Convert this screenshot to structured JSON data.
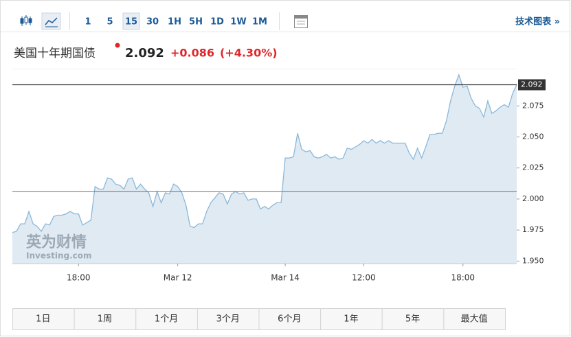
{
  "toolbar": {
    "intervals": [
      "1",
      "5",
      "15",
      "30",
      "1H",
      "5H",
      "1D",
      "1W",
      "1M"
    ],
    "selected": "15",
    "link": "技术图表 »"
  },
  "header": {
    "title": "美国十年期国债",
    "price": "2.092",
    "change": "+0.086",
    "change_percent": "(+4.30%)"
  },
  "watermark": {
    "brand": "英为财情",
    "site": "Investing.com"
  },
  "chart_data": {
    "type": "area",
    "color": "#8ab8d8",
    "fill": "#dfeaf3",
    "values": [
      1.973,
      1.974,
      1.98,
      1.98,
      1.99,
      1.98,
      1.978,
      1.974,
      1.98,
      1.979,
      1.986,
      1.987,
      1.987,
      1.988,
      1.99,
      1.988,
      1.988,
      1.979,
      1.981,
      1.983,
      2.01,
      2.008,
      2.008,
      2.017,
      2.016,
      2.012,
      2.011,
      2.008,
      2.016,
      2.017,
      2.008,
      2.012,
      2.008,
      2.005,
      1.994,
      2.006,
      1.997,
      2.005,
      2.004,
      2.012,
      2.01,
      2.005,
      1.995,
      1.978,
      1.977,
      1.98,
      1.98,
      1.99,
      1.997,
      2.001,
      2.005,
      2.004,
      1.996,
      2.004,
      2.006,
      2.004,
      2.005,
      1.999,
      2.0,
      2.0,
      1.992,
      1.994,
      1.992,
      1.995,
      1.997,
      1.997,
      2.033,
      2.033,
      2.034,
      2.053,
      2.04,
      2.038,
      2.039,
      2.034,
      2.033,
      2.034,
      2.036,
      2.033,
      2.034,
      2.032,
      2.033,
      2.041,
      2.04,
      2.042,
      2.044,
      2.047,
      2.045,
      2.048,
      2.045,
      2.047,
      2.045,
      2.047,
      2.045,
      2.045,
      2.045,
      2.045,
      2.037,
      2.032,
      2.041,
      2.033,
      2.042,
      2.052,
      2.052,
      2.053,
      2.053,
      2.063,
      2.079,
      2.091,
      2.1,
      2.09,
      2.091,
      2.081,
      2.075,
      2.073,
      2.066,
      2.079,
      2.069,
      2.071,
      2.074,
      2.076,
      2.074,
      2.085,
      2.092
    ],
    "xlim": [
      0,
      122
    ],
    "xticks": [
      {
        "value": 16,
        "label": "18:00"
      },
      {
        "value": 40,
        "label": "Mar 12"
      },
      {
        "value": 66,
        "label": "Mar 14"
      },
      {
        "value": 85,
        "label": "12:00"
      },
      {
        "value": 109,
        "label": "18:00"
      }
    ],
    "ylim": [
      1.948,
      2.105
    ],
    "yticks": [
      {
        "value": 1.95,
        "label": "1.950"
      },
      1.975,
      {
        "value": 2,
        "label": "2.000"
      },
      2.025,
      {
        "value": 2.05,
        "label": "2.050"
      },
      2.075
    ],
    "last_price": 2.092,
    "last_price_color": "#333333",
    "prev_close": 2.006,
    "prev_close_color": "#e03c31"
  },
  "ranges": [
    "1日",
    "1周",
    "1个月",
    "3个月",
    "6个月",
    "1年",
    "5年",
    "最大值"
  ]
}
